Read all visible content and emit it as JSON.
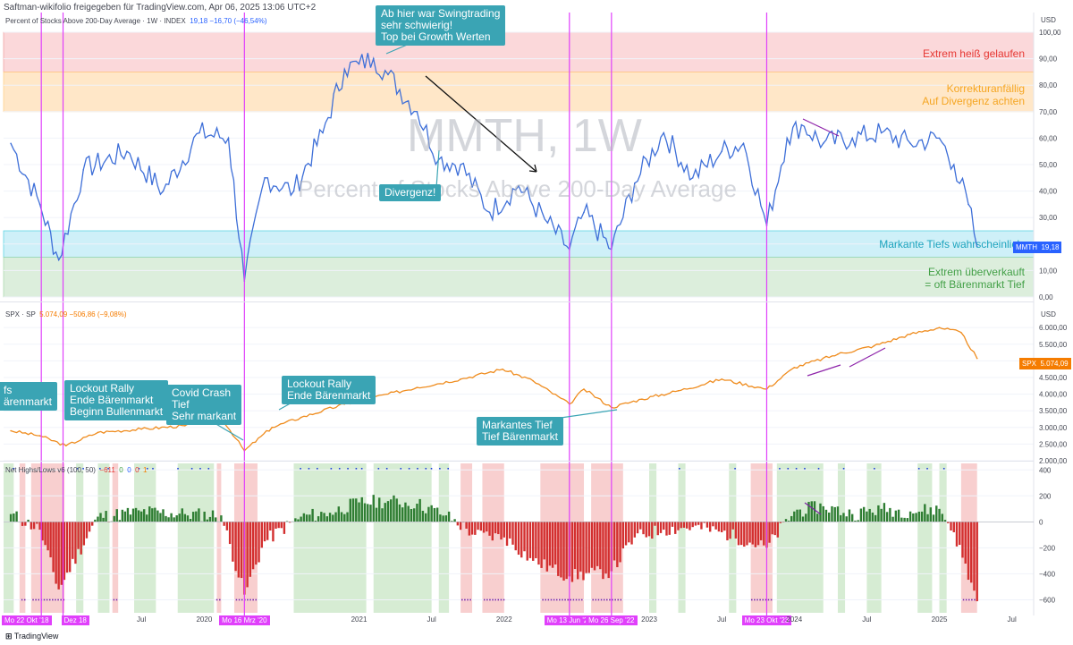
{
  "header": "Saftman-wikifolio freigegeben für TradingView.com, Apr 06, 2025 13:06 UTC+2",
  "colors": {
    "mmth": "#3e6fd8",
    "spx": "#ef8c1e",
    "bull_bg": "#d6ecd3",
    "bear_bg": "#f8cfcf",
    "pos_bar": "#2e7d32",
    "neg_bar": "#d32f2f",
    "marker": "#e040fb",
    "callout": "#3aa4b4"
  },
  "panels": {
    "mmth": {
      "title_left": "Percent of Stocks Above 200-Day Average · 1W · INDEX",
      "values": "19,18  −16,70 (−46,54%)",
      "ticks": [
        "100,00",
        "90,00",
        "80,00",
        "70,00",
        "60,00",
        "50,00",
        "40,00",
        "30,00",
        "20,00",
        "10,00",
        "0,00"
      ],
      "currency": "USD",
      "price_tag_name": "MMTH",
      "price_tag_value": "19,18",
      "watermark_big": "MMTH, 1W",
      "watermark_small": "Percent of Stocks Above 200-Day Average"
    },
    "spx": {
      "title_left": "SPX · SP",
      "values": "5.074,09  −506,86 (−9,08%)",
      "ticks": [
        "6.000,00",
        "5.500,00",
        "5.000,00",
        "4.500,00",
        "4.000,00",
        "3.500,00",
        "3.000,00",
        "2.500,00",
        "2.000,00"
      ],
      "currency": "USD",
      "price_tag_name": "SPX",
      "price_tag_value": "5.074,09"
    },
    "nhnl": {
      "title_left": "Net Highs/Lows v6 (100, 50)",
      "values": {
        "a": "−611",
        "b": "0",
        "c": "0",
        "d": "0",
        "e": "1"
      },
      "ticks": [
        "400",
        "200",
        "0",
        "−200",
        "−400",
        "−600"
      ]
    }
  },
  "zones": {
    "hot": "Extrem heiß gelaufen",
    "corr1": "Korrekturanfällig",
    "corr2": "Auf Divergenz achten",
    "lows": "Markante Tiefs wahrscheinlich",
    "over1": "Extrem überverkauft",
    "over2": "= oft Bärenmarkt Tief"
  },
  "callouts": {
    "swing": "Ab hier war Swingtrading\nsehr schwierig!\nTop bei Growth Werten",
    "div": "Divergenz!",
    "tiefs": "fs\närenmarkt",
    "lockout1": "Lockout Rally\nEnde Bärenmarkt\nBeginn Bullenmarkt",
    "covid": "Covid Crash\nTief\nSehr markant",
    "lockout2": "Lockout Rally\nEnde Bärenmarkt",
    "markant": "Markantes Tief\nTief Bärenmarkt"
  },
  "xaxis": [
    {
      "label": "Mo 22 Okt '18",
      "marker": true
    },
    {
      "label": "Dez 18",
      "marker": true
    },
    {
      "label": "Jul",
      "marker": false
    },
    {
      "label": "2020",
      "marker": false
    },
    {
      "label": "Mo 16 Mrz '20",
      "marker": true
    },
    {
      "label": "2021",
      "marker": false
    },
    {
      "label": "Jul",
      "marker": false
    },
    {
      "label": "2022",
      "marker": false
    },
    {
      "label": "Mo 13 Jun '22",
      "marker": true
    },
    {
      "label": "Mo 26 Sep '22",
      "marker": true
    },
    {
      "label": "2023",
      "marker": false
    },
    {
      "label": "Jul",
      "marker": false
    },
    {
      "label": "Mo 23 Okt '23",
      "marker": true
    },
    {
      "label": "2024",
      "marker": false
    },
    {
      "label": "Jul",
      "marker": false
    },
    {
      "label": "2025",
      "marker": false
    },
    {
      "label": "Jul",
      "marker": false
    }
  ],
  "logo": "TradingView",
  "chart_data": [
    {
      "type": "line",
      "title": "Percent of Stocks Above 200-Day Average · 1W · INDEX",
      "series": [
        {
          "name": "MMTH",
          "x": [
            2018.6,
            2018.8,
            2018.93,
            2019.1,
            2019.4,
            2019.65,
            2019.9,
            2020.1,
            2020.21,
            2020.35,
            2020.55,
            2020.75,
            2020.9,
            2021.0,
            2021.1,
            2021.2,
            2021.4,
            2021.55,
            2021.7,
            2021.9,
            2022.1,
            2022.3,
            2022.45,
            2022.55,
            2022.74,
            2022.9,
            2023.1,
            2023.3,
            2023.5,
            2023.65,
            2023.81,
            2023.95,
            2024.05,
            2024.2,
            2024.4,
            2024.6,
            2024.8,
            2025.0,
            2025.1,
            2025.2,
            2025.26
          ],
          "values": [
            58,
            35,
            14,
            48,
            55,
            40,
            62,
            60,
            6,
            45,
            40,
            62,
            86,
            88,
            90,
            84,
            70,
            52,
            50,
            32,
            42,
            28,
            18,
            32,
            18,
            43,
            62,
            45,
            55,
            58,
            27,
            60,
            65,
            58,
            60,
            62,
            58,
            60,
            50,
            35,
            19
          ]
        }
      ],
      "ylim": [
        0,
        100
      ],
      "zones": [
        {
          "from": 85,
          "to": 100,
          "label": "Extrem heiß gelaufen"
        },
        {
          "from": 70,
          "to": 85,
          "label": "Korrekturanfällig / Auf Divergenz achten"
        },
        {
          "from": 15,
          "to": 25,
          "label": "Markante Tiefs wahrscheinlich"
        },
        {
          "from": 0,
          "to": 15,
          "label": "Extrem überverkauft = oft Bärenmarkt Tief"
        }
      ],
      "last_value": 19.18
    },
    {
      "type": "line",
      "title": "SPX · SP",
      "series": [
        {
          "name": "SPX",
          "x": [
            2018.6,
            2018.8,
            2018.98,
            2019.2,
            2019.5,
            2019.8,
            2020.05,
            2020.21,
            2020.4,
            2020.6,
            2020.9,
            2021.1,
            2021.4,
            2021.7,
            2021.99,
            2022.2,
            2022.45,
            2022.55,
            2022.74,
            2022.95,
            2023.2,
            2023.5,
            2023.81,
            2024.0,
            2024.3,
            2024.55,
            2024.8,
            2025.0,
            2025.15,
            2025.26
          ],
          "values": [
            2900,
            2750,
            2450,
            2850,
            2950,
            3050,
            3300,
            2300,
            3000,
            3300,
            3700,
            3900,
            4200,
            4450,
            4750,
            4400,
            3700,
            4150,
            3600,
            3850,
            4100,
            4450,
            4150,
            4800,
            5200,
            5450,
            5800,
            6000,
            5850,
            5074
          ]
        }
      ],
      "ylim": [
        2000,
        6300
      ],
      "last_value": 5074.09
    },
    {
      "type": "bar",
      "title": "Net Highs/Lows v6 (100, 50)",
      "series": [
        {
          "name": "Net Highs/Lows",
          "x": [
            2018.6,
            2018.8,
            2018.93,
            2019.2,
            2019.5,
            2019.8,
            2020.05,
            2020.21,
            2020.35,
            2020.6,
            2020.8,
            2021.0,
            2021.2,
            2021.4,
            2021.6,
            2021.8,
            2022.0,
            2022.2,
            2022.45,
            2022.74,
            2022.9,
            2023.1,
            2023.3,
            2023.5,
            2023.81,
            2024.0,
            2024.2,
            2024.4,
            2024.6,
            2024.8,
            2025.0,
            2025.1,
            2025.26
          ],
          "values": [
            60,
            -60,
            -520,
            40,
            80,
            60,
            50,
            -560,
            -150,
            40,
            70,
            150,
            160,
            140,
            50,
            -100,
            -120,
            -300,
            -420,
            -380,
            -120,
            -60,
            -40,
            -80,
            -200,
            80,
            120,
            60,
            100,
            80,
            100,
            -80,
            -611
          ]
        }
      ],
      "ylim": [
        -700,
        450
      ]
    }
  ]
}
